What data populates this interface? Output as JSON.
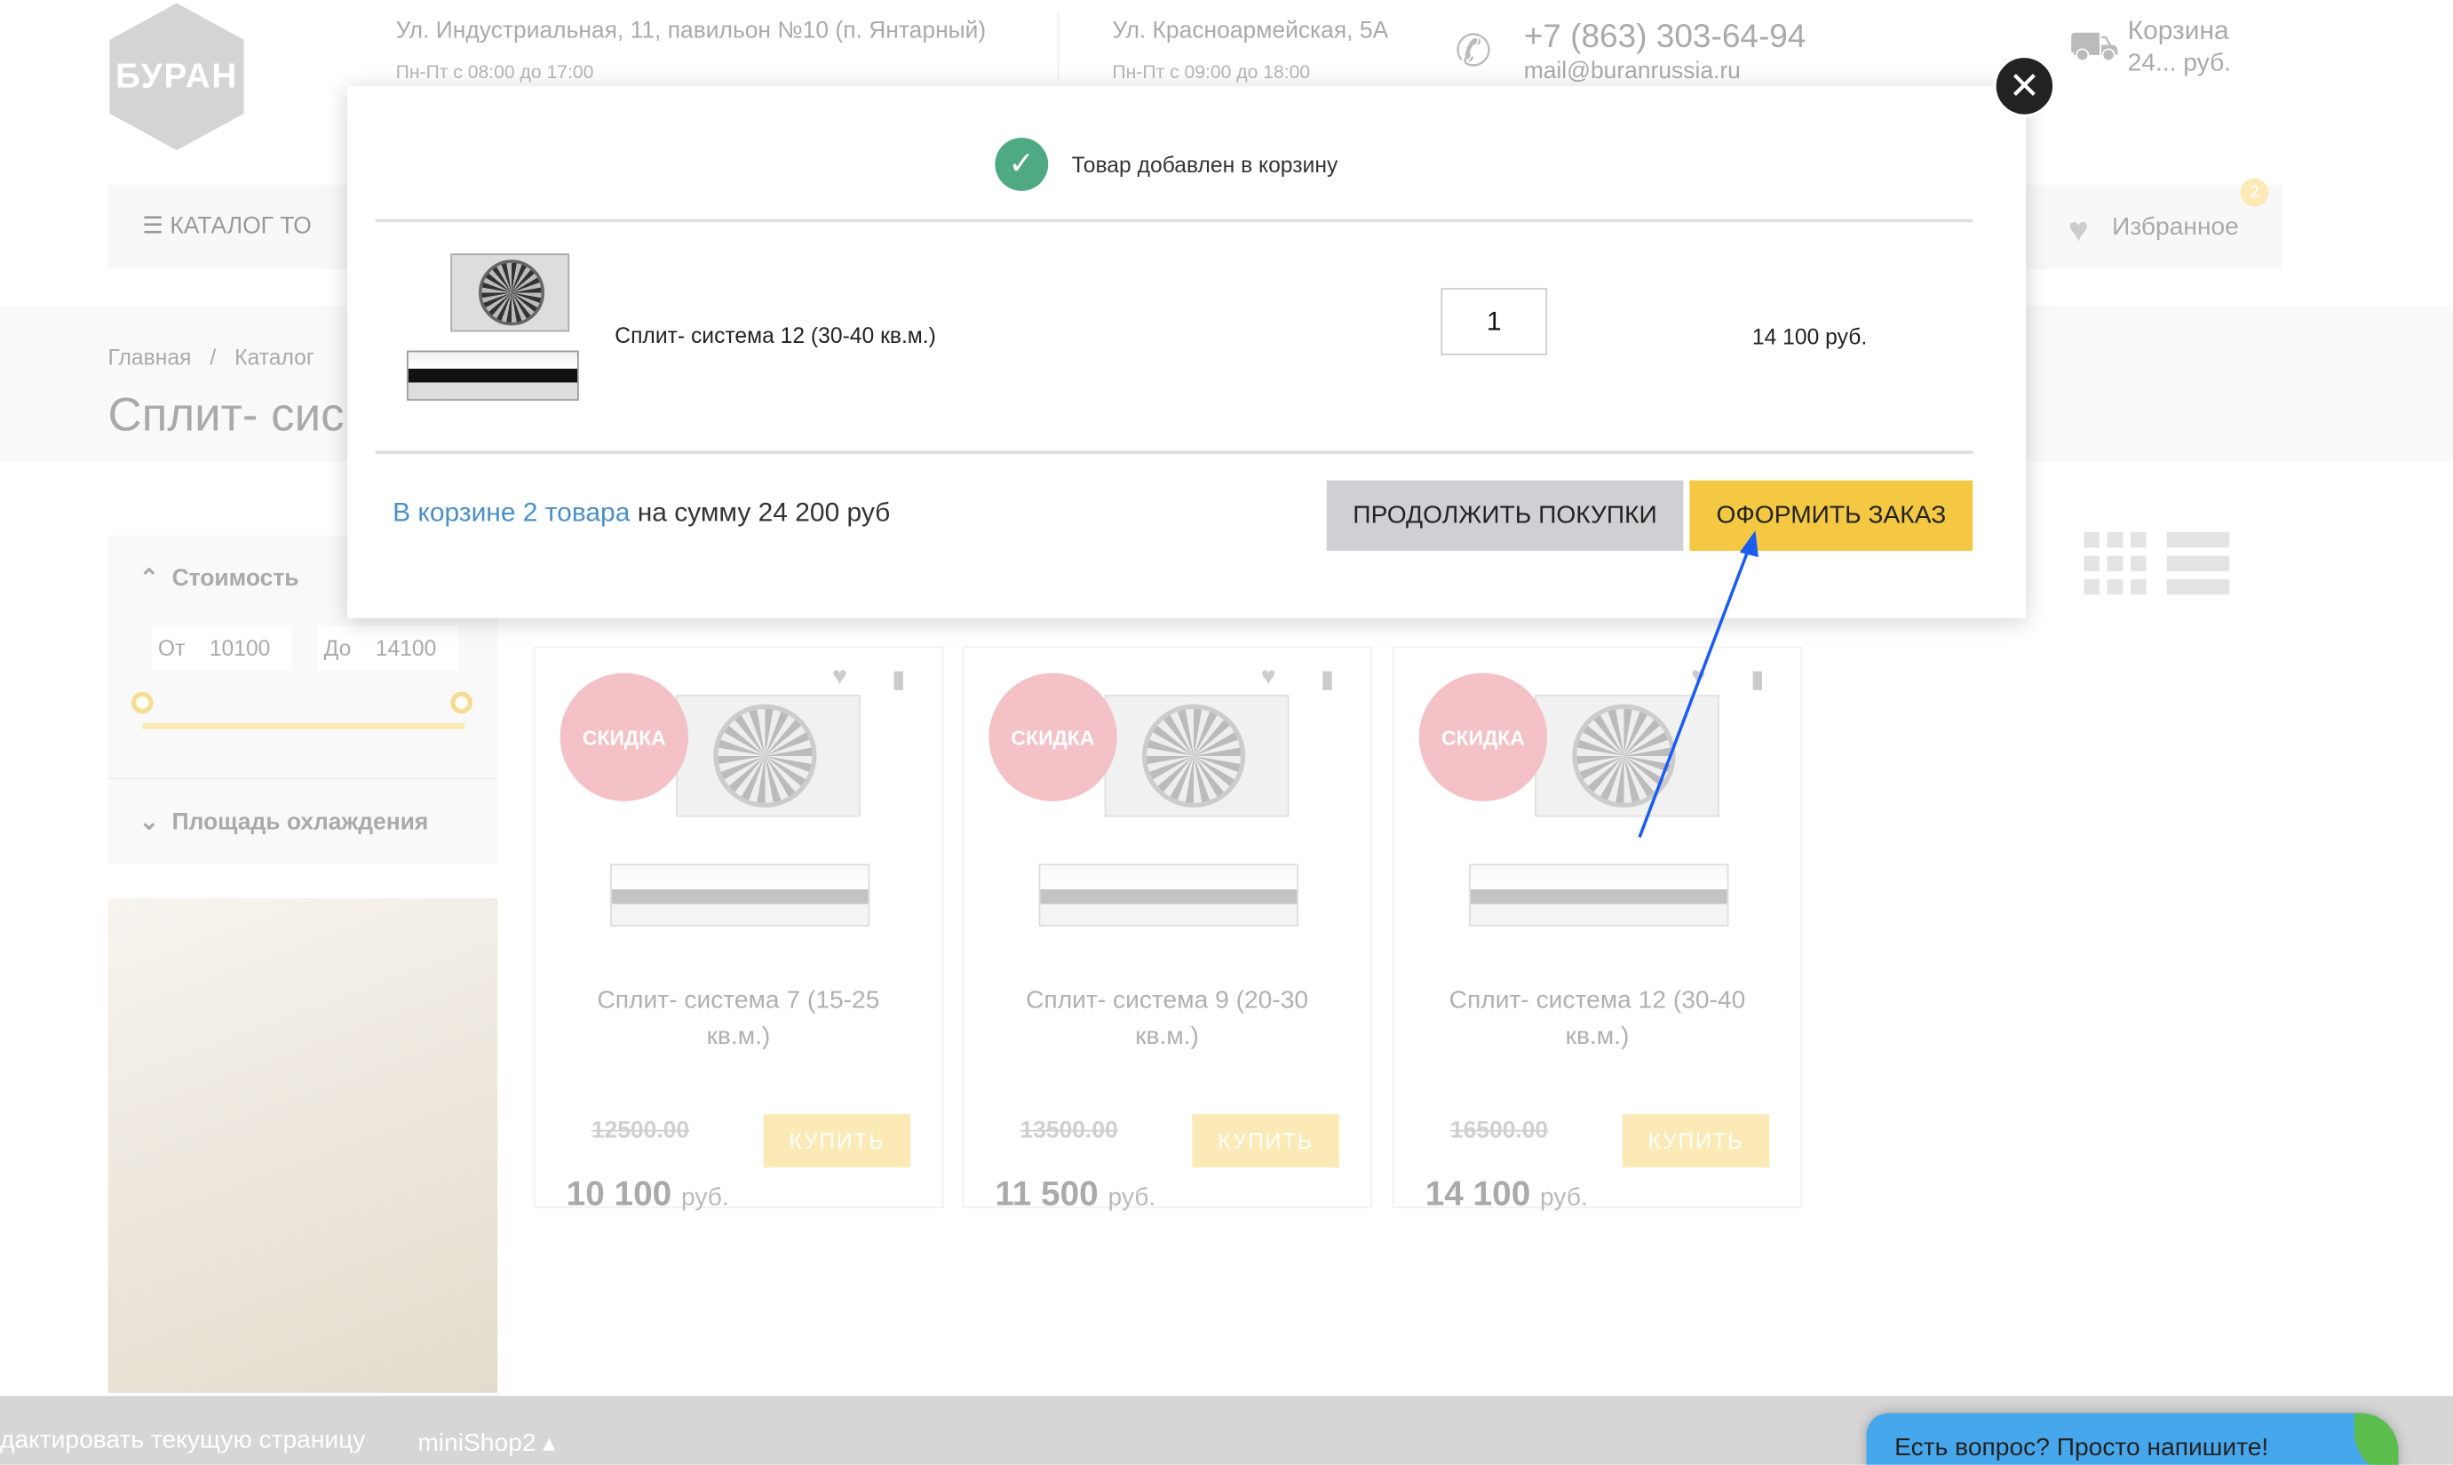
{
  "header": {
    "logo_text": "БУРАН",
    "address1": "Ул. Индустриальная, 11, павильон №10 (п. Янтарный)",
    "hours1": "Пн-Пт с 08:00 до 17:00",
    "address2": "Ул. Красноармейская, 5А",
    "hours2": "Пн-Пт с 09:00 до 18:00",
    "phone": "+7 (863) 303-64-94",
    "email": "mail@buranrussia.ru",
    "cart_label": "Корзина",
    "cart_sum": "24... руб."
  },
  "nav": {
    "catalog": "КАТАЛОГ ТО",
    "favorites": "Избранное",
    "favorites_count": "2"
  },
  "breadcrumb": {
    "home": "Главная",
    "sep": "/",
    "catalog": "Каталог"
  },
  "page_title": "Сплит- сис",
  "filter": {
    "cost_title": "Стоимость",
    "from_label": "От",
    "from_value": "10100",
    "to_label": "До",
    "to_value": "14100",
    "area_title": "Площадь охлаждения"
  },
  "products": [
    {
      "badge": "СКИДКА",
      "name": "Сплит- система 7 (15-25 кв.м.)",
      "old_price": "12500.00",
      "price": "10 100",
      "currency": "руб.",
      "buy": "КУПИТЬ"
    },
    {
      "badge": "СКИДКА",
      "name": "Сплит- система 9 (20-30 кв.м.)",
      "old_price": "13500.00",
      "price": "11 500",
      "currency": "руб.",
      "buy": "КУПИТЬ"
    },
    {
      "badge": "СКИДКА",
      "name": "Сплит- система 12 (30-40 кв.м.)",
      "old_price": "16500.00",
      "price": "14 100",
      "currency": "руб.",
      "buy": "КУПИТЬ"
    }
  ],
  "modal": {
    "message": "Товар добавлен в корзину",
    "item_name": "Сплит- система 12 (30-40 кв.м.)",
    "quantity": "1",
    "item_price": "14 100 руб.",
    "summary_link": "В корзине 2 товара",
    "summary_rest": "на сумму 24 200 руб",
    "continue_button": "ПРОДОЛЖИТЬ ПОКУПКИ",
    "checkout_button": "ОФОРМИТЬ ЗАКАЗ",
    "close_icon": "close-icon",
    "success_icon": "check-circle-icon"
  },
  "bottom_bar": {
    "edit": "дактировать текущую страницу",
    "minishop": "miniShop2 ▴"
  },
  "chat": {
    "label": "Есть вопрос? Просто напишите!"
  },
  "colors": {
    "accent_yellow": "#f4c842",
    "success_green": "#4faa84",
    "link_blue": "#4a8fc6",
    "discount_red": "#e24b5a",
    "chat_blue": "#47a7ec",
    "annotation_arrow": "#1a5cf0"
  }
}
